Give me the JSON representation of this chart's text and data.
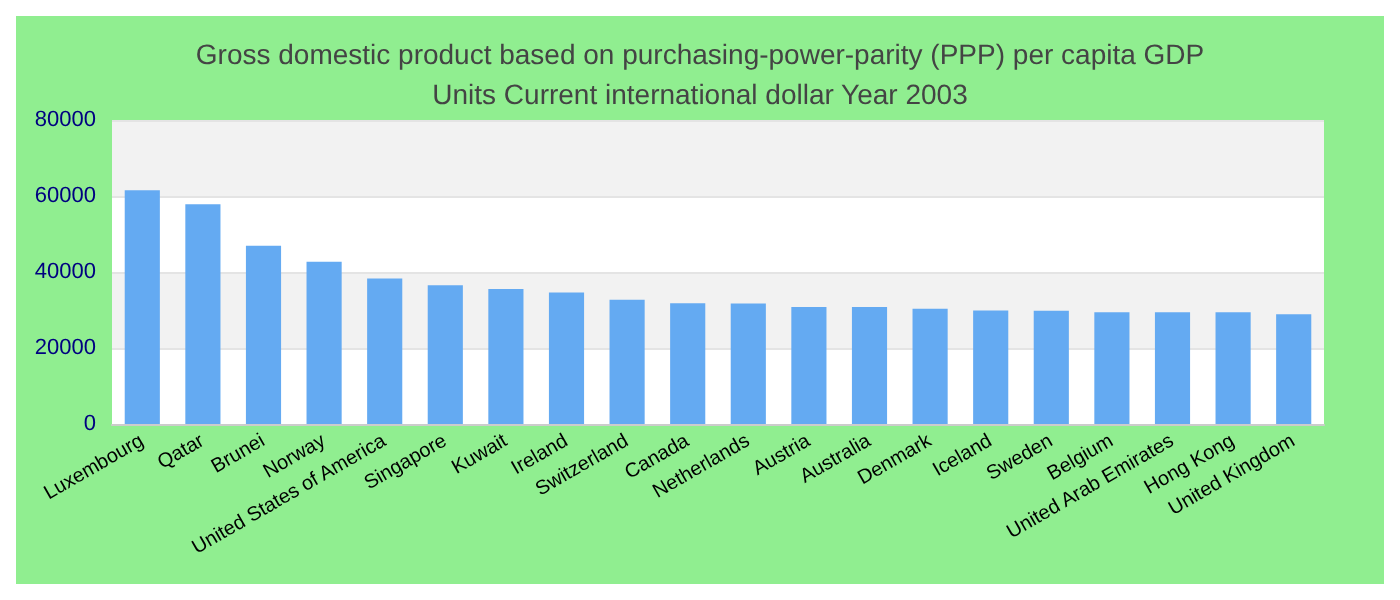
{
  "chart_data": {
    "type": "bar",
    "title": "Gross domestic product based on purchasing-power-parity (PPP) per capita GDP\nUnits Current international dollar Year 2003",
    "categories": [
      "Luxembourg",
      "Qatar",
      "Brunei",
      "Norway",
      "United States of America",
      "Singapore",
      "Kuwait",
      "Ireland",
      "Switzerland",
      "Canada",
      "Netherlands",
      "Austria",
      "Australia",
      "Denmark",
      "Iceland",
      "Sweden",
      "Belgium",
      "United Arab Emirates",
      "Hong Kong",
      "United Kingdom"
    ],
    "values": [
      61500,
      57800,
      46900,
      42700,
      38300,
      36500,
      35500,
      34600,
      32700,
      31800,
      31700,
      30800,
      30800,
      30300,
      29900,
      29800,
      29400,
      29400,
      29400,
      28900
    ],
    "color": "#64aaf2",
    "ylim": [
      0,
      80000
    ],
    "yticks": [
      0,
      20000,
      40000,
      60000,
      80000
    ],
    "grid": "y"
  }
}
